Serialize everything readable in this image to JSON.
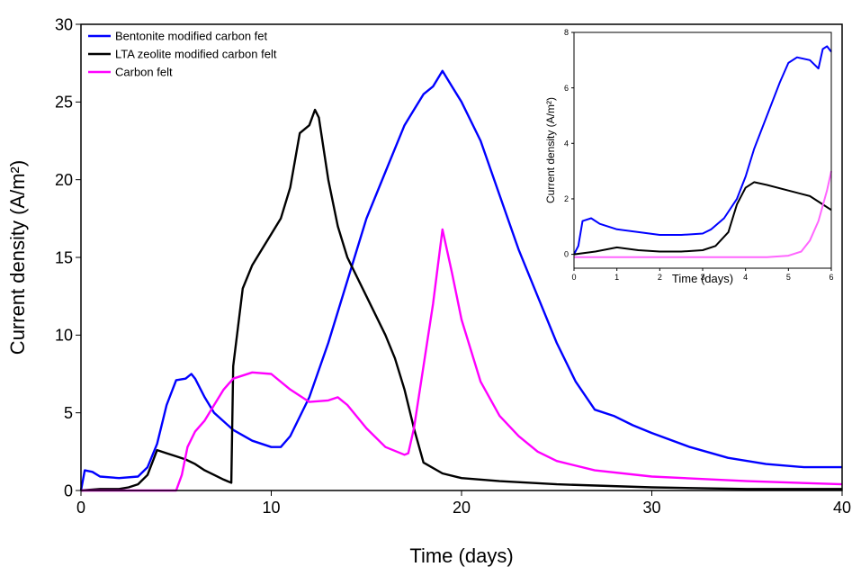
{
  "chart_data": [
    {
      "type": "line",
      "title": "",
      "xlabel": "Time (days)",
      "ylabel": "Current density (A/m²)",
      "xlim": [
        0,
        40
      ],
      "ylim": [
        0,
        30
      ],
      "xticks": [
        0,
        10,
        20,
        30,
        40
      ],
      "yticks": [
        0,
        5,
        10,
        15,
        20,
        25,
        30
      ],
      "grid": false,
      "legend": "top-left",
      "series": [
        {
          "name": "Bentonite modified carbon fet",
          "color": "#0000ff",
          "x": [
            0,
            0.2,
            0.6,
            1,
            2,
            3,
            3.5,
            4,
            4.5,
            5,
            5.5,
            5.8,
            6,
            6.5,
            7,
            8,
            9,
            10,
            10.5,
            11,
            12,
            13,
            14,
            15,
            16,
            16.5,
            17,
            17.5,
            18,
            18.5,
            19,
            19.5,
            20,
            21,
            22,
            23,
            24,
            25,
            26,
            27,
            28,
            29,
            30,
            32,
            34,
            36,
            38,
            40
          ],
          "y": [
            0,
            1.3,
            1.2,
            0.9,
            0.8,
            0.9,
            1.5,
            3,
            5.5,
            7.1,
            7.2,
            7.5,
            7.2,
            6,
            5,
            3.9,
            3.2,
            2.8,
            2.8,
            3.5,
            6,
            9.5,
            13.5,
            17.5,
            20.5,
            22,
            23.5,
            24.5,
            25.5,
            26,
            27,
            26,
            25,
            22.5,
            19,
            15.5,
            12.5,
            9.5,
            7,
            5.2,
            4.8,
            4.2,
            3.7,
            2.8,
            2.1,
            1.7,
            1.5,
            1.5
          ]
        },
        {
          "name": "LTA zeolite modified carbon felt",
          "color": "#000000",
          "x": [
            0,
            1,
            2,
            2.5,
            3,
            3.5,
            4,
            4.5,
            5,
            5.5,
            6,
            6.5,
            7,
            7.5,
            7.9,
            8,
            8.5,
            9,
            9.5,
            10,
            10.5,
            11,
            11.5,
            12,
            12.3,
            12.5,
            13,
            13.5,
            14,
            15,
            16,
            16.5,
            17,
            17.5,
            18,
            19,
            20,
            22,
            25,
            30,
            35,
            40
          ],
          "y": [
            0,
            0.1,
            0.1,
            0.2,
            0.4,
            1,
            2.6,
            2.4,
            2.2,
            2,
            1.7,
            1.3,
            1,
            0.7,
            0.5,
            8,
            13,
            14.5,
            15.5,
            16.5,
            17.5,
            19.5,
            23,
            23.5,
            24.5,
            24,
            20,
            17,
            15,
            12.5,
            10,
            8.5,
            6.5,
            4,
            1.8,
            1.1,
            0.8,
            0.6,
            0.4,
            0.2,
            0.1,
            0.1
          ]
        },
        {
          "name": "Carbon felt",
          "color": "#ff00ff",
          "x": [
            0,
            2,
            4,
            5,
            5.3,
            5.6,
            6,
            6.5,
            7,
            7.5,
            8,
            9,
            10,
            11,
            12,
            13,
            13.5,
            14,
            15,
            16,
            17,
            17.2,
            17.5,
            18,
            18.5,
            19,
            19.5,
            20,
            21,
            22,
            23,
            24,
            25,
            27,
            30,
            35,
            40
          ],
          "y": [
            0,
            0,
            0,
            0,
            1,
            2.8,
            3.8,
            4.5,
            5.5,
            6.5,
            7.2,
            7.6,
            7.5,
            6.5,
            5.7,
            5.8,
            6,
            5.5,
            4,
            2.8,
            2.3,
            2.4,
            4,
            8,
            12,
            16.8,
            14,
            11,
            7,
            4.8,
            3.5,
            2.5,
            1.9,
            1.3,
            0.9,
            0.6,
            0.4
          ]
        }
      ]
    },
    {
      "type": "line",
      "title": "",
      "xlabel": "Time (days)",
      "ylabel": "Current density (A/m²)",
      "xlim": [
        0,
        6
      ],
      "ylim": [
        -0.5,
        8
      ],
      "xticks": [
        0,
        1,
        2,
        3,
        4,
        5,
        6
      ],
      "yticks": [
        0,
        2,
        4,
        6,
        8
      ],
      "grid": false,
      "series": [
        {
          "color": "#0000ff",
          "x": [
            0,
            0.1,
            0.2,
            0.4,
            0.6,
            1,
            1.5,
            2,
            2.5,
            3,
            3.2,
            3.5,
            3.8,
            4,
            4.2,
            4.5,
            4.8,
            5,
            5.2,
            5.5,
            5.7,
            5.8,
            5.9,
            6
          ],
          "y": [
            0,
            0.3,
            1.2,
            1.3,
            1.1,
            0.9,
            0.8,
            0.7,
            0.7,
            0.75,
            0.9,
            1.3,
            2,
            2.8,
            3.8,
            5,
            6.2,
            6.9,
            7.1,
            7,
            6.7,
            7.4,
            7.5,
            7.3
          ]
        },
        {
          "color": "#000000",
          "x": [
            0,
            0.5,
            1,
            1.5,
            2,
            2.5,
            3,
            3.3,
            3.6,
            3.8,
            4,
            4.2,
            4.5,
            5,
            5.5,
            5.8,
            6
          ],
          "y": [
            0,
            0.1,
            0.25,
            0.15,
            0.1,
            0.1,
            0.15,
            0.3,
            0.8,
            1.8,
            2.4,
            2.6,
            2.5,
            2.3,
            2.1,
            1.8,
            1.6
          ]
        },
        {
          "color": "#ff66ff",
          "x": [
            0,
            1,
            2,
            3,
            4,
            4.5,
            5,
            5.3,
            5.5,
            5.7,
            5.9,
            6
          ],
          "y": [
            -0.1,
            -0.1,
            -0.1,
            -0.1,
            -0.1,
            -0.1,
            -0.05,
            0.1,
            0.5,
            1.2,
            2.3,
            3
          ]
        }
      ]
    }
  ]
}
